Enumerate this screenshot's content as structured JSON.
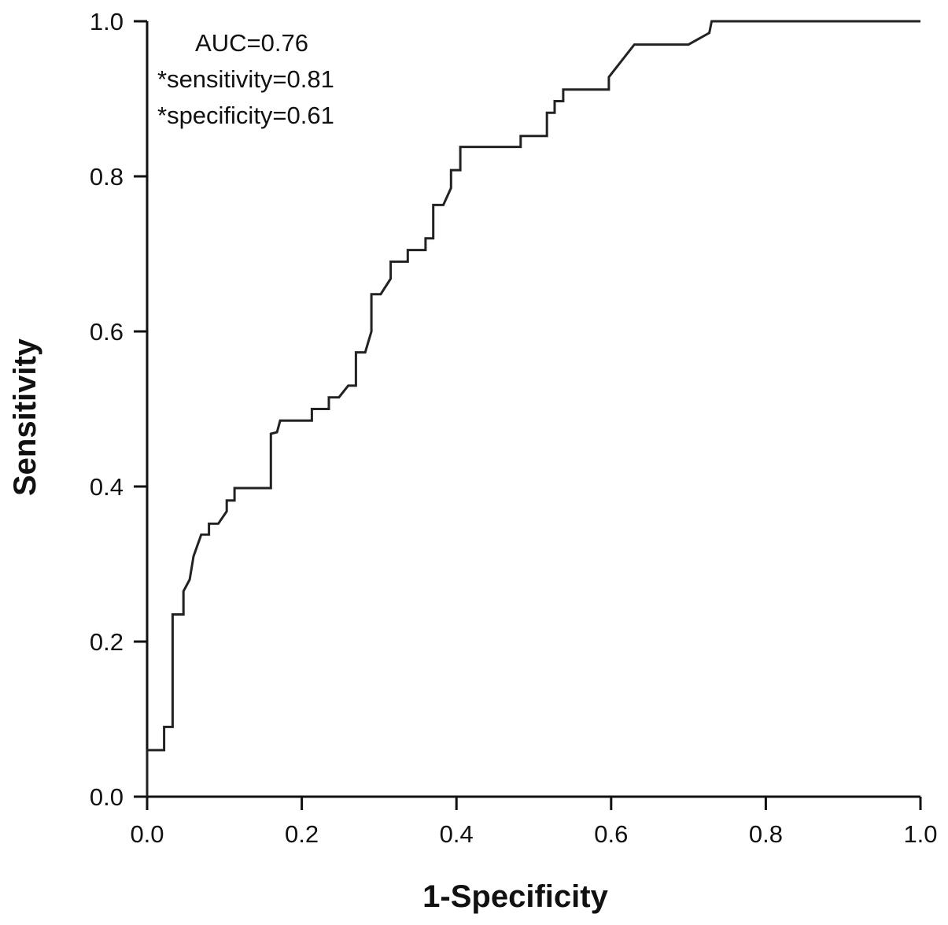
{
  "chart_data": {
    "type": "line",
    "title": "",
    "xlabel": "1-Specificity",
    "ylabel": "Sensitivity",
    "xlim": [
      0,
      1
    ],
    "ylim": [
      0,
      1
    ],
    "xticks": [
      "0.0",
      "0.2",
      "0.4",
      "0.6",
      "0.8",
      "1.0"
    ],
    "yticks": [
      "0.0",
      "0.2",
      "0.4",
      "0.6",
      "0.8",
      "1.0"
    ],
    "grid": false,
    "legend": "none",
    "annotations": [
      "AUC=0.76",
      "*sensitivity=0.81",
      "*specificity=0.61"
    ],
    "line_color": "#222222",
    "series": [
      {
        "points": [
          [
            0.0,
            0.0
          ],
          [
            0.0,
            0.06
          ],
          [
            0.022,
            0.06
          ],
          [
            0.022,
            0.09
          ],
          [
            0.033,
            0.09
          ],
          [
            0.033,
            0.235
          ],
          [
            0.047,
            0.235
          ],
          [
            0.047,
            0.265
          ],
          [
            0.055,
            0.28
          ],
          [
            0.06,
            0.31
          ],
          [
            0.07,
            0.338
          ],
          [
            0.08,
            0.338
          ],
          [
            0.08,
            0.352
          ],
          [
            0.092,
            0.352
          ],
          [
            0.103,
            0.368
          ],
          [
            0.103,
            0.382
          ],
          [
            0.113,
            0.382
          ],
          [
            0.113,
            0.398
          ],
          [
            0.16,
            0.398
          ],
          [
            0.16,
            0.468
          ],
          [
            0.168,
            0.47
          ],
          [
            0.172,
            0.485
          ],
          [
            0.213,
            0.485
          ],
          [
            0.213,
            0.5
          ],
          [
            0.235,
            0.5
          ],
          [
            0.235,
            0.515
          ],
          [
            0.248,
            0.515
          ],
          [
            0.26,
            0.53
          ],
          [
            0.27,
            0.53
          ],
          [
            0.27,
            0.573
          ],
          [
            0.282,
            0.573
          ],
          [
            0.29,
            0.6
          ],
          [
            0.29,
            0.648
          ],
          [
            0.302,
            0.648
          ],
          [
            0.315,
            0.668
          ],
          [
            0.315,
            0.69
          ],
          [
            0.337,
            0.69
          ],
          [
            0.337,
            0.705
          ],
          [
            0.36,
            0.705
          ],
          [
            0.36,
            0.72
          ],
          [
            0.37,
            0.72
          ],
          [
            0.37,
            0.763
          ],
          [
            0.383,
            0.763
          ],
          [
            0.393,
            0.785
          ],
          [
            0.393,
            0.808
          ],
          [
            0.405,
            0.808
          ],
          [
            0.405,
            0.838
          ],
          [
            0.483,
            0.838
          ],
          [
            0.483,
            0.852
          ],
          [
            0.517,
            0.852
          ],
          [
            0.517,
            0.882
          ],
          [
            0.527,
            0.882
          ],
          [
            0.527,
            0.897
          ],
          [
            0.538,
            0.897
          ],
          [
            0.538,
            0.912
          ],
          [
            0.597,
            0.912
          ],
          [
            0.597,
            0.928
          ],
          [
            0.63,
            0.97
          ],
          [
            0.7,
            0.97
          ],
          [
            0.727,
            0.985
          ],
          [
            0.73,
            1.0
          ],
          [
            1.0,
            1.0
          ]
        ]
      }
    ]
  }
}
